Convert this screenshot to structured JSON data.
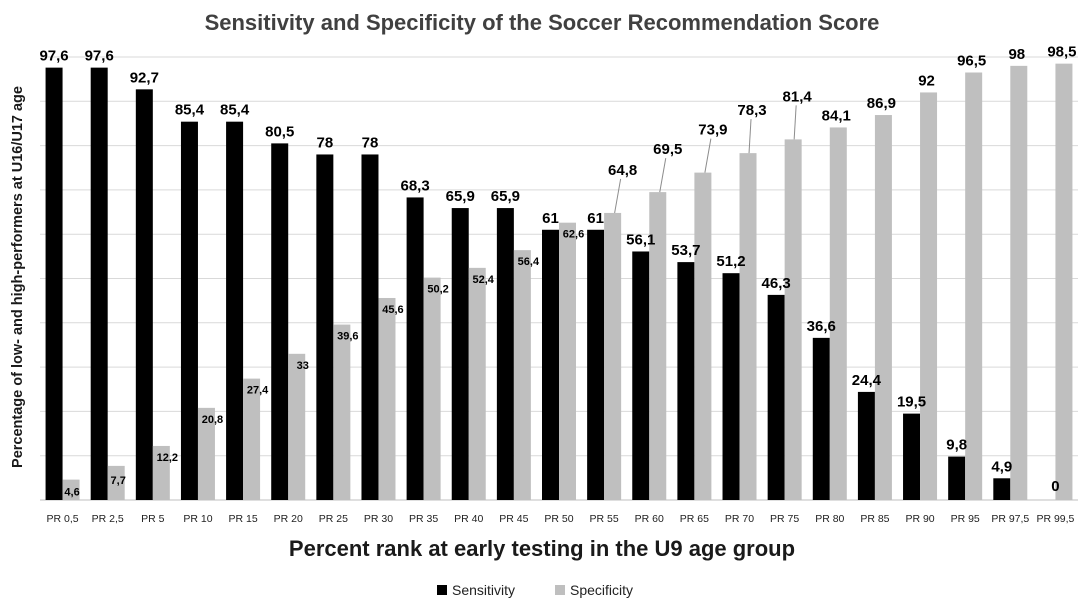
{
  "chart_data": {
    "type": "bar",
    "title": "Sensitivity and Specificity  of the Soccer Recommendation Score",
    "xlabel": "Percent rank at early testing in the U9  age group",
    "ylabel": "Percentage of low- and high-performers at U16/U17 age",
    "ylim": [
      0,
      100
    ],
    "grid": true,
    "legend_position": "bottom",
    "categories": [
      "PR 0,5",
      "PR 2,5",
      "PR 5",
      "PR 10",
      "PR 15",
      "PR 20",
      "PR 25",
      "PR 30",
      "PR 35",
      "PR 40",
      "PR 45",
      "PR 50",
      "PR 55",
      "PR 60",
      "PR 65",
      "PR 70",
      "PR 75",
      "PR 80",
      "PR 85",
      "PR 90",
      "PR 95",
      "PR 97,5",
      "PR 99,5"
    ],
    "series": [
      {
        "name": "Sensitivity",
        "color": "#000000",
        "values": [
          97.6,
          97.6,
          92.7,
          85.4,
          85.4,
          80.5,
          78,
          78,
          68.3,
          65.9,
          65.9,
          61,
          61,
          56.1,
          53.7,
          51.2,
          46.3,
          36.6,
          24.4,
          19.5,
          9.8,
          4.9,
          0
        ],
        "labels": [
          "97,6",
          "97,6",
          "92,7",
          "85,4",
          "85,4",
          "80,5",
          "78",
          "78",
          "68,3",
          "65,9",
          "65,9",
          "61",
          "61",
          "56,1",
          "53,7",
          "51,2",
          "46,3",
          "36,6",
          "24,4",
          "19,5",
          "9,8",
          "4,9",
          "0"
        ]
      },
      {
        "name": "Specificity",
        "color": "#bfbfbf",
        "values": [
          4.6,
          7.7,
          12.2,
          20.8,
          27.4,
          33,
          39.6,
          45.6,
          50.2,
          52.4,
          56.4,
          62.6,
          64.8,
          69.5,
          73.9,
          78.3,
          81.4,
          84.1,
          86.9,
          92,
          96.5,
          98,
          98.5
        ],
        "labels": [
          "4,6",
          "7,7",
          "12,2",
          "20,8",
          "27,4",
          "33",
          "39,6",
          "45,6",
          "50,2",
          "52,4",
          "56,4",
          "62,6",
          "64,8",
          "69,5",
          "73,9",
          "78,3",
          "81,4",
          "84,1",
          "86,9",
          "92",
          "96,5",
          "98",
          "98,5"
        ]
      }
    ]
  }
}
